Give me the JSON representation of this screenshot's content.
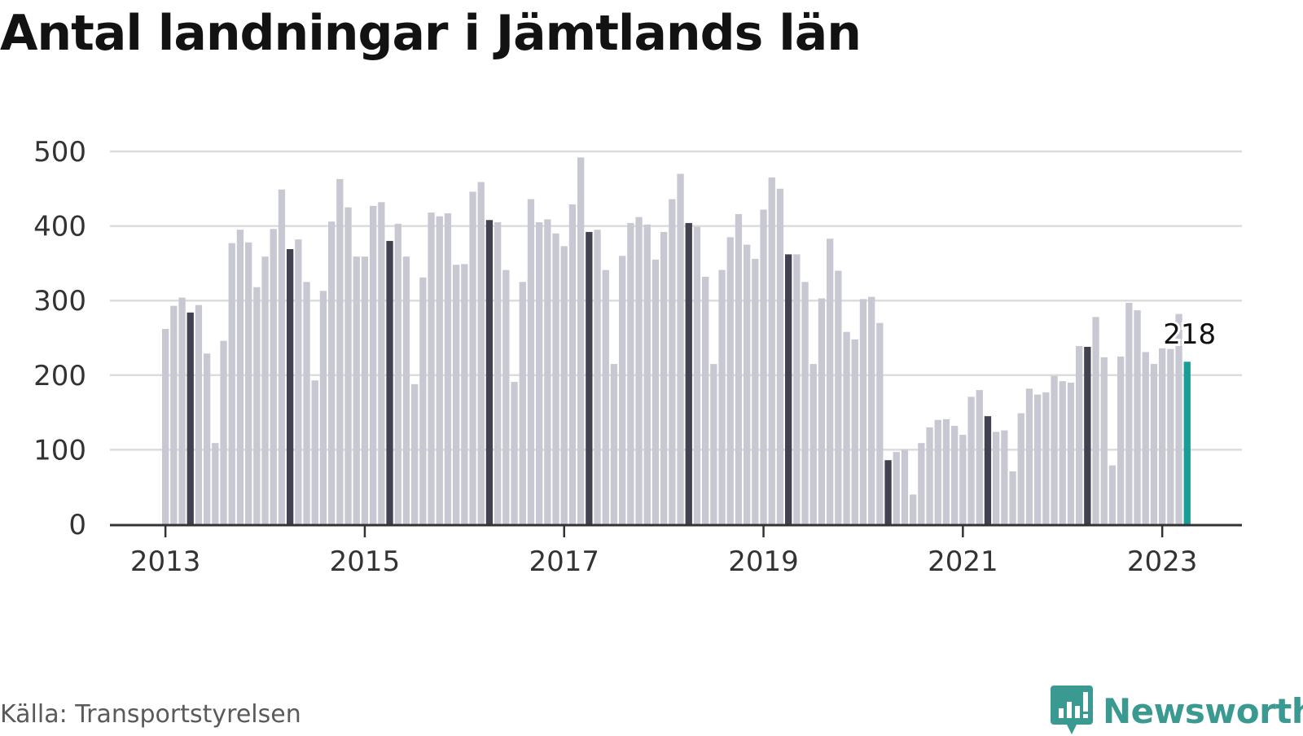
{
  "title": "Antal landningar i Jämtlands län",
  "source": "Källa: Transportstyrelsen",
  "brand": {
    "name": "Newsworthy",
    "icon": "newsworthy-logo-icon"
  },
  "colors": {
    "bar_default": "#c8c8d3",
    "bar_highlight": "#41414f",
    "bar_latest": "#1a9d96",
    "axis": "#333333",
    "grid": "#dcdcdc",
    "brand": "#3a9a91"
  },
  "chart_data": {
    "type": "bar",
    "title": "Antal landningar i Jämtlands län",
    "ylim": [
      0,
      500
    ],
    "yticks": [
      "0",
      "100",
      "200",
      "300",
      "400",
      "500"
    ],
    "xticks": [
      "2013",
      "2015",
      "2017",
      "2019",
      "2021",
      "2023"
    ],
    "grid": true,
    "first_month": "2013-01",
    "highlight_month": 4,
    "callout": "218",
    "values": [
      262,
      293,
      304,
      284,
      294,
      229,
      109,
      246,
      377,
      395,
      378,
      318,
      359,
      396,
      449,
      369,
      382,
      325,
      193,
      313,
      406,
      463,
      425,
      359,
      359,
      427,
      432,
      380,
      403,
      359,
      188,
      331,
      418,
      413,
      417,
      348,
      349,
      446,
      459,
      408,
      405,
      341,
      191,
      325,
      436,
      405,
      409,
      390,
      373,
      429,
      492,
      392,
      395,
      341,
      215,
      360,
      404,
      412,
      402,
      355,
      392,
      436,
      470,
      404,
      399,
      332,
      215,
      341,
      385,
      416,
      375,
      356,
      422,
      465,
      450,
      362,
      362,
      325,
      215,
      303,
      383,
      340,
      258,
      248,
      302,
      305,
      270,
      86,
      97,
      100,
      40,
      109,
      130,
      140,
      141,
      132,
      120,
      171,
      180,
      145,
      124,
      126,
      71,
      149,
      182,
      174,
      177,
      199,
      192,
      190,
      239,
      238,
      278,
      224,
      79,
      225,
      297,
      287,
      231,
      215,
      236,
      235,
      282,
      218
    ]
  }
}
